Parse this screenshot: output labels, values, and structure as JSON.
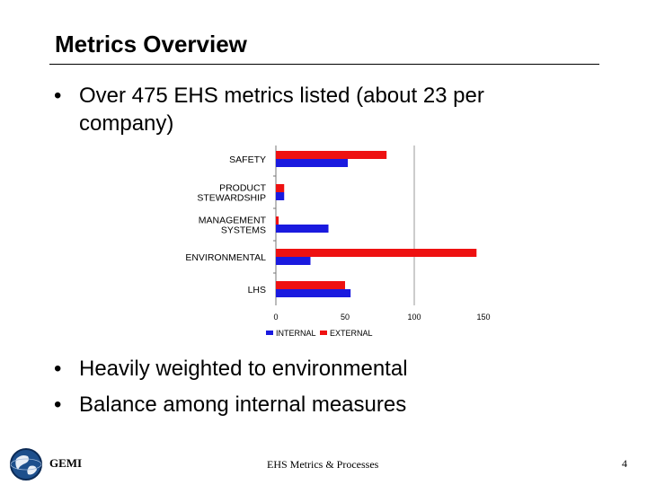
{
  "slide": {
    "title": "Metrics Overview",
    "bullets": [
      "Over 475 EHS metrics listed (about 23 per company)",
      "Heavily weighted to environmental",
      "Balance among internal measures"
    ],
    "bullet_symbol": "•",
    "footer": "EHS Metrics & Processes",
    "page_number": "4",
    "logo_text": "GEMI"
  },
  "colors": {
    "internal": "#1a1adf",
    "external": "#ee1111"
  },
  "chart_data": {
    "type": "bar",
    "orientation": "horizontal",
    "categories": [
      [
        "SAFETY"
      ],
      [
        "PRODUCT",
        "STEWARDSHIP"
      ],
      [
        "MANAGEMENT",
        "SYSTEMS"
      ],
      [
        "ENVIRONMENTAL"
      ],
      [
        "LHS"
      ]
    ],
    "series": [
      {
        "name": "INTERNAL",
        "values": [
          52,
          6,
          38,
          25,
          54
        ]
      },
      {
        "name": "EXTERNAL",
        "values": [
          80,
          6,
          2,
          145,
          50
        ]
      }
    ],
    "xticks": [
      "0",
      "50",
      "100",
      "150"
    ],
    "xlim": [
      0,
      150
    ],
    "gridline_at": 100,
    "legend_position": "bottom"
  }
}
